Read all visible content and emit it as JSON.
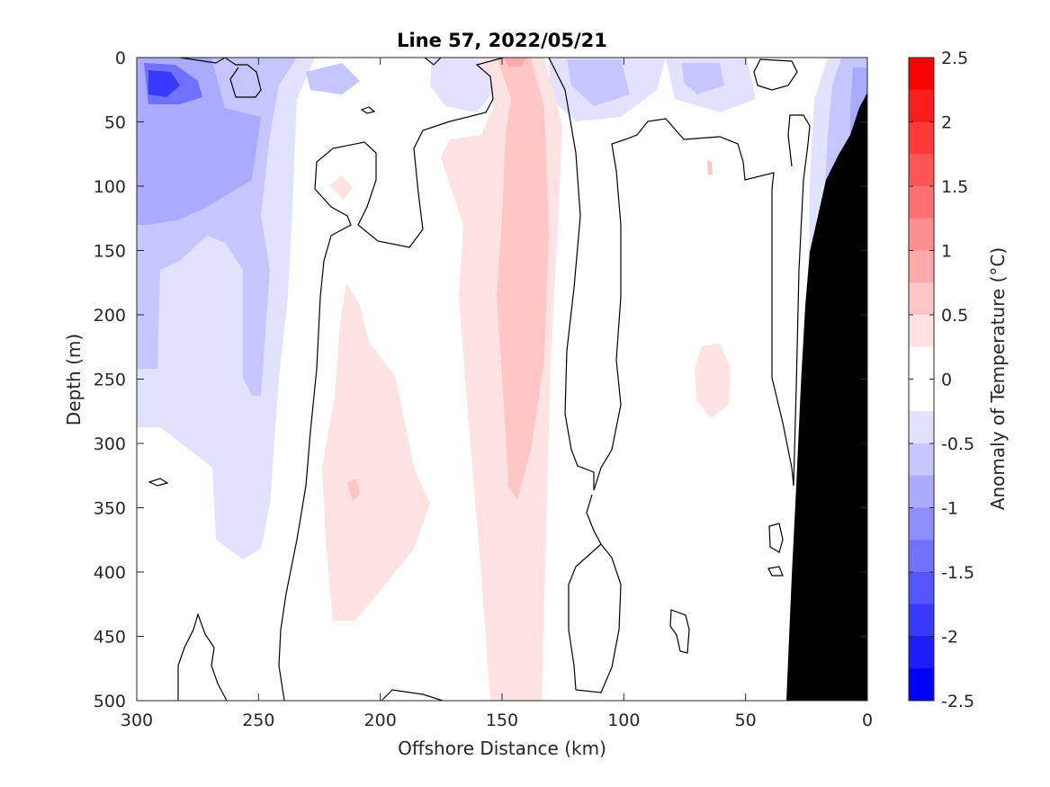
{
  "chart_data": {
    "type": "heatmap",
    "title": "Line 57, 2022/05/21",
    "xlabel": "Offshore Distance (km)",
    "ylabel": "Depth (m)",
    "colorbar_label": "Anomaly of Temperature (°C)",
    "xlim": [
      300,
      0
    ],
    "ylim": [
      0,
      500
    ],
    "x_reversed": true,
    "y_reversed": true,
    "x_ticks": [
      300,
      250,
      200,
      150,
      100,
      50,
      0
    ],
    "y_ticks": [
      0,
      50,
      100,
      150,
      200,
      250,
      300,
      350,
      400,
      450,
      500
    ],
    "colorbar": {
      "range": [
        -2.5,
        2.5
      ],
      "ticks": [
        "2.5",
        "2",
        "1.5",
        "1",
        "0.5",
        "0",
        "-0.5",
        "-1",
        "-1.5",
        "-2",
        "-2.5"
      ],
      "colors_top_to_bottom": [
        "#ff0000",
        "#ff1c1c",
        "#ff3838",
        "#ff5555",
        "#ff7171",
        "#ff8e8e",
        "#ffaaaa",
        "#ffc6c6",
        "#ffe2e2",
        "#ffffff",
        "#ffffff",
        "#e2e2ff",
        "#c6c6ff",
        "#aaaaff",
        "#8e8eff",
        "#7171ff",
        "#5555ff",
        "#3838ff",
        "#1c1cff",
        "#0000ff"
      ]
    },
    "features": [
      {
        "name": "warm core",
        "x_range_km": [
          125,
          160
        ],
        "depth_range_m": [
          0,
          500
        ],
        "anomaly_c": [
          0.25,
          0.75
        ]
      },
      {
        "name": "warm tongue",
        "x_range_km": [
          180,
          230
        ],
        "depth_range_m": [
          180,
          440
        ],
        "anomaly_c": [
          0.25,
          0.5
        ]
      },
      {
        "name": "cool offshore water",
        "x_range_km": [
          225,
          300
        ],
        "depth_range_m": [
          0,
          390
        ],
        "anomaly_c": [
          -1.75,
          -0.25
        ]
      },
      {
        "name": "cool nearshore water",
        "x_range_km": [
          0,
          25
        ],
        "depth_range_m": [
          0,
          180
        ],
        "anomaly_c": [
          -1.25,
          -0.25
        ]
      },
      {
        "name": "bathymetry",
        "x_range_km": [
          0,
          33
        ],
        "depth_range_m": [
          35,
          500
        ],
        "color": "#000000"
      }
    ]
  }
}
